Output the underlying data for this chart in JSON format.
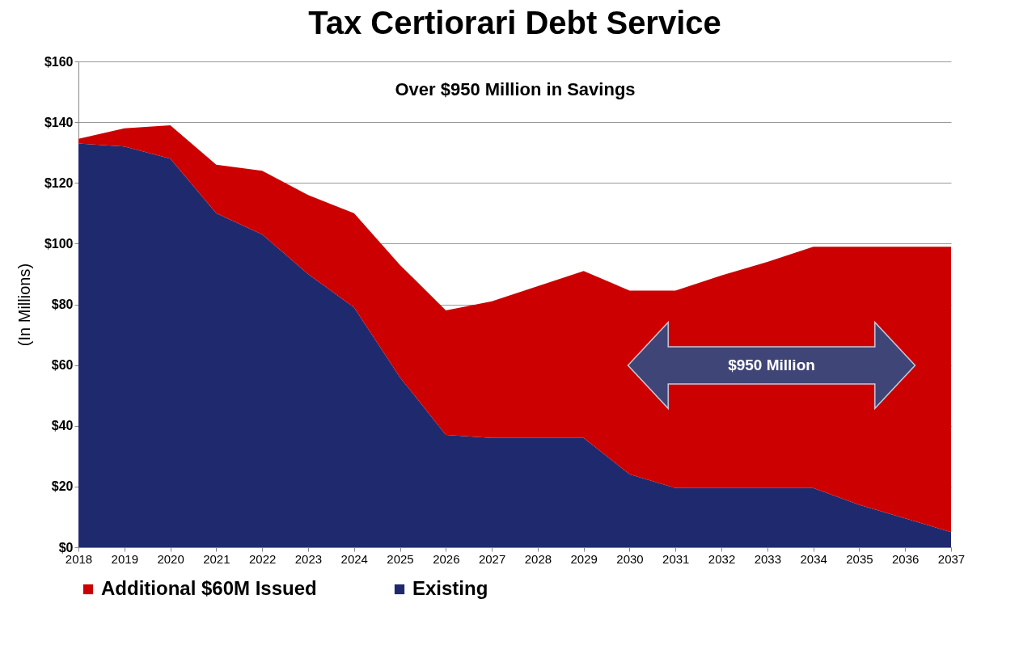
{
  "chart_data": {
    "type": "area",
    "title": "Tax Certiorari Debt Service",
    "ylabel": "(In Millions)",
    "categories": [
      "2018",
      "2019",
      "2020",
      "2021",
      "2022",
      "2023",
      "2024",
      "2025",
      "2026",
      "2027",
      "2028",
      "2029",
      "2030",
      "2031",
      "2032",
      "2033",
      "2034",
      "2035",
      "2036",
      "2037"
    ],
    "series": [
      {
        "name": "Existing",
        "color": "#1f2a6e",
        "values": [
          133,
          132,
          128,
          110,
          103,
          90,
          79,
          56,
          37,
          36,
          36,
          36,
          24,
          19.5,
          19.5,
          19.5,
          19.5,
          14,
          9.5,
          5
        ]
      },
      {
        "name": "Additional $60M Issued",
        "color": "#cc0000",
        "values": [
          1.5,
          6,
          11,
          16,
          21,
          26,
          31,
          37,
          41,
          45,
          50,
          55,
          60.5,
          65,
          70,
          74.5,
          79.5,
          85,
          89.5,
          94
        ]
      }
    ],
    "stacked": true,
    "ylim": [
      0,
      160
    ],
    "yticks": [
      {
        "value": 0,
        "label": "$0"
      },
      {
        "value": 20,
        "label": "$20"
      },
      {
        "value": 40,
        "label": "$40"
      },
      {
        "value": 60,
        "label": "$60"
      },
      {
        "value": 80,
        "label": "$80"
      },
      {
        "value": 100,
        "label": "$100"
      },
      {
        "value": 120,
        "label": "$120"
      },
      {
        "value": 140,
        "label": "$140"
      },
      {
        "value": 160,
        "label": "$160"
      }
    ],
    "grid": "y",
    "legend": "bottom",
    "annotations": [
      "Over $950 Million in Savings",
      "$950 Million"
    ]
  }
}
